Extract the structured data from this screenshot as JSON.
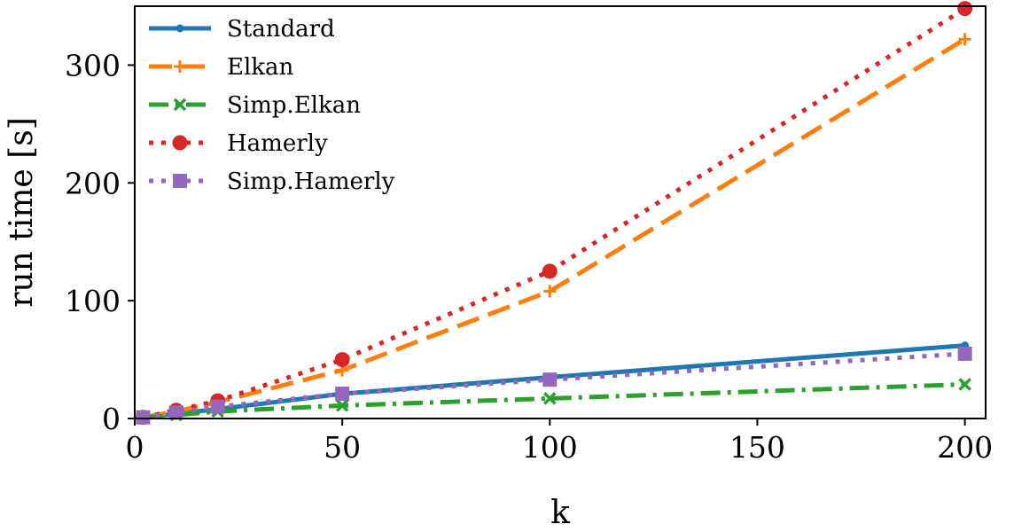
{
  "chart_data": {
    "type": "line",
    "title": "",
    "xlabel": "k",
    "ylabel": "run time [s]",
    "xlim": [
      0,
      205
    ],
    "ylim": [
      0,
      350
    ],
    "xticks": [
      0,
      50,
      100,
      150,
      200
    ],
    "yticks": [
      0,
      100,
      200,
      300
    ],
    "grid": false,
    "legend_position": "top-left",
    "series": [
      {
        "name": "Standard",
        "color": "#1f77b4",
        "linestyle": "solid",
        "marker": "dot",
        "x": [
          2,
          10,
          20,
          50,
          100,
          200
        ],
        "values": [
          1,
          4,
          8,
          21,
          35,
          62
        ]
      },
      {
        "name": "Elkan",
        "color": "#ff7f0e",
        "linestyle": "dashed",
        "marker": "plus",
        "x": [
          2,
          10,
          20,
          50,
          100,
          200
        ],
        "values": [
          1,
          6,
          14,
          41,
          108,
          322
        ]
      },
      {
        "name": "Simp.Elkan",
        "color": "#2ca02c",
        "linestyle": "dashdot",
        "marker": "x",
        "x": [
          2,
          10,
          20,
          50,
          100,
          200
        ],
        "values": [
          0.5,
          3,
          6,
          11,
          17,
          29
        ]
      },
      {
        "name": "Hamerly",
        "color": "#d62728",
        "linestyle": "dotted",
        "marker": "circle",
        "x": [
          2,
          10,
          20,
          50,
          100,
          200
        ],
        "values": [
          1,
          7,
          15,
          50,
          125,
          348
        ]
      },
      {
        "name": "Simp.Hamerly",
        "color": "#9467bd",
        "linestyle": "dotted",
        "marker": "square",
        "x": [
          2,
          10,
          20,
          50,
          100,
          200
        ],
        "values": [
          1,
          5,
          10,
          21,
          33,
          55
        ]
      }
    ]
  }
}
